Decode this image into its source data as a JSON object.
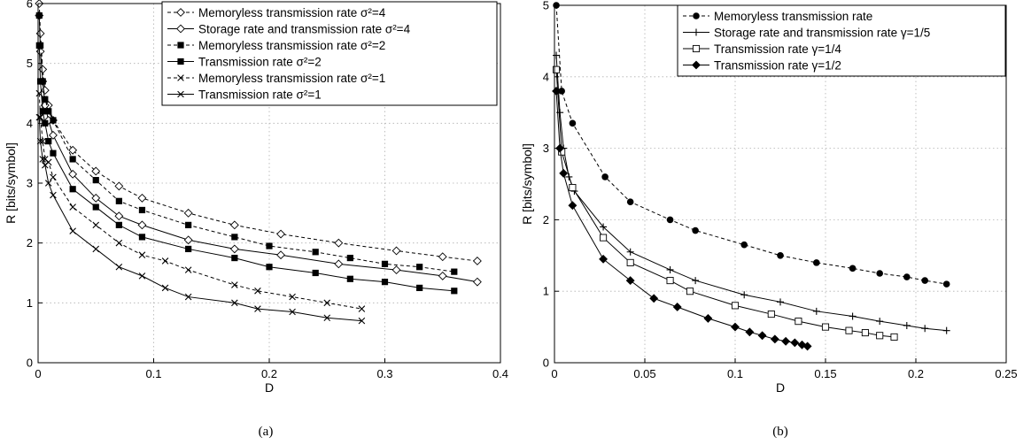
{
  "chart_data": [
    {
      "panel": "a",
      "caption": "(a)",
      "type": "line",
      "xlabel": "D",
      "ylabel": "R [bits/symbol]",
      "xlim": [
        0,
        0.4
      ],
      "ylim": [
        0,
        6
      ],
      "xticks": [
        "0",
        "0.1",
        "0.2",
        "0.3",
        "0.4"
      ],
      "yticks": [
        "0",
        "1",
        "2",
        "3",
        "4",
        "5",
        "6"
      ],
      "xtick_values": [
        0,
        0.1,
        0.2,
        0.3,
        0.4
      ],
      "ytick_values": [
        0,
        1,
        2,
        3,
        4,
        5,
        6
      ],
      "grid": true,
      "legend_position": "top-right",
      "series": [
        {
          "name": "Memoryless transmission rate σ²=4",
          "style": "dashed",
          "marker": "diamond-open",
          "x": [
            0.001,
            0.002,
            0.004,
            0.006,
            0.009,
            0.013,
            0.03,
            0.05,
            0.07,
            0.09,
            0.13,
            0.17,
            0.21,
            0.26,
            0.31,
            0.35,
            0.38
          ],
          "y": [
            6.0,
            5.5,
            4.9,
            4.55,
            4.3,
            4.05,
            3.55,
            3.2,
            2.95,
            2.75,
            2.5,
            2.3,
            2.15,
            2.0,
            1.87,
            1.77,
            1.7
          ]
        },
        {
          "name": "Storage rate and transmission rate σ²=4",
          "style": "solid",
          "marker": "diamond-open",
          "x": [
            0.001,
            0.002,
            0.004,
            0.006,
            0.009,
            0.013,
            0.03,
            0.05,
            0.07,
            0.09,
            0.13,
            0.17,
            0.21,
            0.26,
            0.31,
            0.35,
            0.38
          ],
          "y": [
            5.8,
            5.2,
            4.7,
            4.3,
            4.05,
            3.8,
            3.15,
            2.75,
            2.45,
            2.3,
            2.05,
            1.9,
            1.8,
            1.65,
            1.55,
            1.45,
            1.35
          ]
        },
        {
          "name": "Memoryless transmission rate σ²=2",
          "style": "dashed",
          "marker": "square-filled",
          "x": [
            0.001,
            0.002,
            0.004,
            0.006,
            0.009,
            0.013,
            0.03,
            0.05,
            0.07,
            0.09,
            0.13,
            0.17,
            0.2,
            0.24,
            0.27,
            0.3,
            0.33,
            0.36
          ],
          "y": [
            5.8,
            5.3,
            4.7,
            4.4,
            4.2,
            4.05,
            3.4,
            3.05,
            2.7,
            2.55,
            2.3,
            2.1,
            1.95,
            1.85,
            1.75,
            1.65,
            1.6,
            1.52
          ]
        },
        {
          "name": "Transmission rate σ²=2",
          "style": "solid",
          "marker": "square-filled",
          "x": [
            0.001,
            0.002,
            0.004,
            0.006,
            0.009,
            0.013,
            0.03,
            0.05,
            0.07,
            0.09,
            0.13,
            0.17,
            0.2,
            0.24,
            0.27,
            0.3,
            0.33,
            0.36
          ],
          "y": [
            5.3,
            4.7,
            4.2,
            4.0,
            3.7,
            3.5,
            2.9,
            2.6,
            2.3,
            2.1,
            1.9,
            1.75,
            1.6,
            1.5,
            1.4,
            1.35,
            1.25,
            1.2
          ]
        },
        {
          "name": "Memoryless transmission rate σ²=1",
          "style": "dashed",
          "marker": "x",
          "x": [
            0.001,
            0.002,
            0.004,
            0.006,
            0.009,
            0.013,
            0.03,
            0.05,
            0.07,
            0.09,
            0.11,
            0.13,
            0.17,
            0.19,
            0.22,
            0.25,
            0.28
          ],
          "y": [
            4.5,
            4.1,
            3.7,
            3.4,
            3.35,
            3.1,
            2.6,
            2.3,
            2.0,
            1.8,
            1.7,
            1.55,
            1.3,
            1.2,
            1.1,
            1.0,
            0.9
          ]
        },
        {
          "name": "Transmission rate σ²=1",
          "style": "solid",
          "marker": "x",
          "x": [
            0.001,
            0.002,
            0.004,
            0.006,
            0.009,
            0.013,
            0.03,
            0.05,
            0.07,
            0.09,
            0.11,
            0.13,
            0.17,
            0.19,
            0.22,
            0.25,
            0.28
          ],
          "y": [
            4.1,
            3.7,
            3.4,
            3.3,
            3.0,
            2.8,
            2.2,
            1.9,
            1.6,
            1.45,
            1.25,
            1.1,
            1.0,
            0.9,
            0.85,
            0.75,
            0.7
          ]
        }
      ]
    },
    {
      "panel": "b",
      "caption": "(b)",
      "type": "line",
      "xlabel": "D",
      "ylabel": "R [bits/symbol]",
      "xlim": [
        0,
        0.25
      ],
      "ylim": [
        0,
        5
      ],
      "xticks": [
        "0",
        "0.05",
        "0.1",
        "0.15",
        "0.2",
        "0.25"
      ],
      "yticks": [
        "0",
        "1",
        "2",
        "3",
        "4",
        "5"
      ],
      "xtick_values": [
        0,
        0.05,
        0.1,
        0.15,
        0.2,
        0.25
      ],
      "ytick_values": [
        0,
        1,
        2,
        3,
        4,
        5
      ],
      "grid": true,
      "legend_position": "top-right",
      "series": [
        {
          "name": "Memoryless transmission rate",
          "style": "dashed",
          "marker": "circle-filled",
          "x": [
            0.001,
            0.004,
            0.01,
            0.028,
            0.042,
            0.064,
            0.078,
            0.105,
            0.125,
            0.145,
            0.165,
            0.18,
            0.195,
            0.205,
            0.217
          ],
          "y": [
            5.0,
            3.8,
            3.35,
            2.6,
            2.25,
            2.0,
            1.85,
            1.65,
            1.5,
            1.4,
            1.32,
            1.25,
            1.2,
            1.15,
            1.1
          ]
        },
        {
          "name": "Storage rate and transmission rate γ=1/5",
          "style": "solid",
          "marker": "plus",
          "x": [
            0.001,
            0.003,
            0.005,
            0.008,
            0.011,
            0.027,
            0.042,
            0.064,
            0.078,
            0.105,
            0.125,
            0.145,
            0.165,
            0.18,
            0.195,
            0.205,
            0.217
          ],
          "y": [
            4.3,
            3.5,
            3.0,
            2.6,
            2.4,
            1.9,
            1.55,
            1.3,
            1.15,
            0.95,
            0.85,
            0.72,
            0.65,
            0.58,
            0.52,
            0.48,
            0.45
          ]
        },
        {
          "name": "Transmission rate γ=1/4",
          "style": "solid",
          "marker": "square-open",
          "x": [
            0.001,
            0.004,
            0.01,
            0.027,
            0.042,
            0.064,
            0.075,
            0.1,
            0.12,
            0.135,
            0.15,
            0.163,
            0.172,
            0.18,
            0.188
          ],
          "y": [
            4.1,
            2.95,
            2.45,
            1.75,
            1.4,
            1.15,
            1.0,
            0.8,
            0.68,
            0.58,
            0.5,
            0.45,
            0.42,
            0.38,
            0.36
          ]
        },
        {
          "name": "Transmission rate γ=1/2",
          "style": "solid",
          "marker": "diamond-filled",
          "x": [
            0.001,
            0.003,
            0.005,
            0.01,
            0.027,
            0.042,
            0.055,
            0.068,
            0.085,
            0.1,
            0.108,
            0.115,
            0.122,
            0.128,
            0.133,
            0.137,
            0.14
          ],
          "y": [
            3.8,
            3.0,
            2.65,
            2.2,
            1.45,
            1.15,
            0.9,
            0.78,
            0.62,
            0.5,
            0.43,
            0.38,
            0.33,
            0.3,
            0.28,
            0.25,
            0.23
          ]
        }
      ]
    }
  ]
}
